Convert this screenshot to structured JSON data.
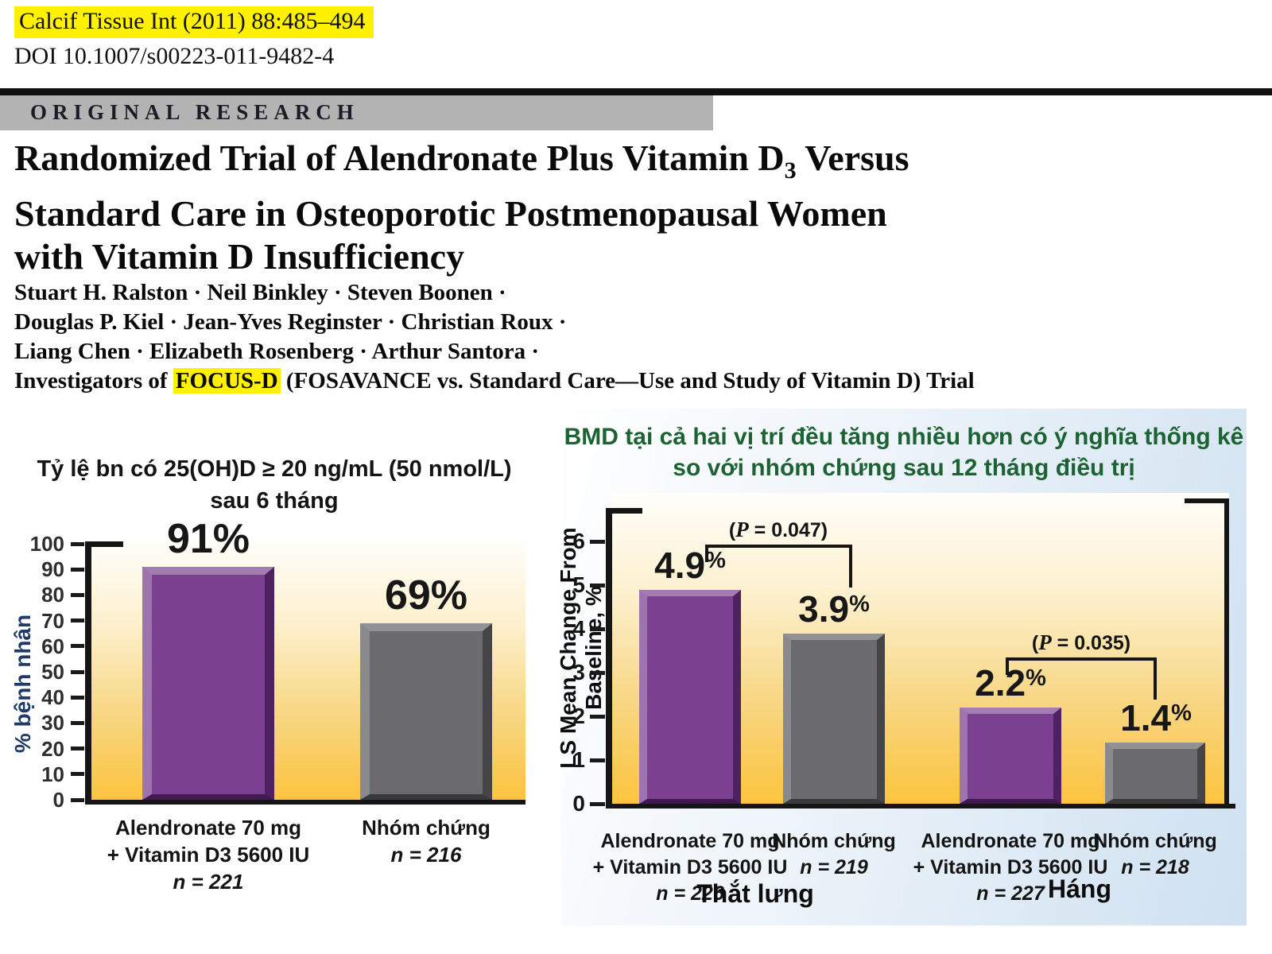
{
  "header": {
    "citation": "Calcif Tissue Int (2011) 88:485–494",
    "doi": "DOI 10.1007/s00223-011-9482-4",
    "section_banner": "ORIGINAL RESEARCH",
    "title": {
      "line1_pre": "Randomized Trial of Alendronate Plus Vitamin D",
      "line1_sub": "3",
      "line1_post": " Versus",
      "line2": "Standard Care in Osteoporotic Postmenopausal Women",
      "line3": "with Vitamin D Insufficiency"
    },
    "authors": {
      "line1": "Stuart H. Ralston · Neil Binkley · Steven Boonen ·",
      "line2": "Douglas P. Kiel · Jean-Yves Reginster · Christian Roux ·",
      "line3": "Liang Chen · Elizabeth Rosenberg · Arthur Santora ·",
      "line4_pre": "Investigators of ",
      "line4_highlight": "FOCUS-D",
      "line4_post": " (FOSAVANCE vs. Standard Care—Use and Study of Vitamin D) Trial"
    }
  },
  "chart_data": [
    {
      "type": "bar",
      "title_line1": "Tỷ lệ bn có 25(OH)D ≥ 20 ng/mL (50 nmol/L)",
      "title_line2": "sau 6 tháng",
      "ylabel": "% bệnh nhân",
      "xlabel": "",
      "ylim": [
        0,
        100
      ],
      "yticks": [
        0,
        10,
        20,
        30,
        40,
        50,
        60,
        70,
        80,
        90,
        100
      ],
      "grid": false,
      "legend": "none",
      "bars": [
        {
          "label_line1": "Alendronate 70 mg",
          "label_line2": "+ Vitamin D3 5600 IU",
          "n": "n = 221",
          "value": 91,
          "display": "91%",
          "color": "#7c4090"
        },
        {
          "label_line1": "Nhóm chứng",
          "label_line2": "",
          "n": "n = 216",
          "value": 69,
          "display": "69%",
          "color": "#6b6b6d"
        }
      ]
    },
    {
      "type": "bar",
      "title_line1": "BMD tại cả hai vị trí đều tăng nhiều hơn có ý nghĩa thống kê",
      "title_line2": "so với nhóm chứng sau 12 tháng điều trị",
      "ylabel": "LS Mean Change From Baseline, %",
      "xlabel": "",
      "ylim": [
        0,
        6
      ],
      "yticks": [
        0,
        1,
        2,
        3,
        4,
        5,
        6
      ],
      "grid": false,
      "legend": "none",
      "groups": [
        "Thắt lưng",
        "Háng"
      ],
      "p_values": [
        {
          "pre": "(",
          "it": "P",
          "post": " = 0.047)"
        },
        {
          "pre": "(",
          "it": "P",
          "post": " = 0.035)"
        }
      ],
      "bars": [
        {
          "label_line1": "Alendronate 70 mg",
          "label_line2": "+ Vitamin D3 5600 IU",
          "n": "n = 226",
          "value": 4.9,
          "display": "4.9",
          "unit": "%",
          "color": "#7c4090",
          "group": "Thắt lưng"
        },
        {
          "label_line1": "Nhóm chứng",
          "label_line2": "",
          "n": "n = 219",
          "value": 3.9,
          "display": "3.9",
          "unit": "%",
          "color": "#6b6b6d",
          "group": "Thắt lưng"
        },
        {
          "label_line1": "Alendronate 70 mg",
          "label_line2": "+ Vitamin D3 5600 IU",
          "n": "n = 227",
          "value": 2.2,
          "display": "2.2",
          "unit": "%",
          "color": "#7c4090",
          "group": "Háng"
        },
        {
          "label_line1": "Nhóm chứng",
          "label_line2": "",
          "n": "n = 218",
          "value": 1.4,
          "display": "1.4",
          "unit": "%",
          "color": "#6b6b6d",
          "group": "Háng"
        }
      ]
    }
  ],
  "colors": {
    "highlight_yellow": "#fff100",
    "treatment_bar_purple": "#7c4090",
    "control_bar_gray": "#6b6b6d",
    "right_title_green": "#1d6233",
    "left_ylabel_navy": "#1f3a67",
    "plot_gradient_top": "#fffefb",
    "plot_gradient_bottom": "#fbc33c",
    "right_panel_blue": "#cfe1f1",
    "banner_gray": "#b3b3b3"
  }
}
